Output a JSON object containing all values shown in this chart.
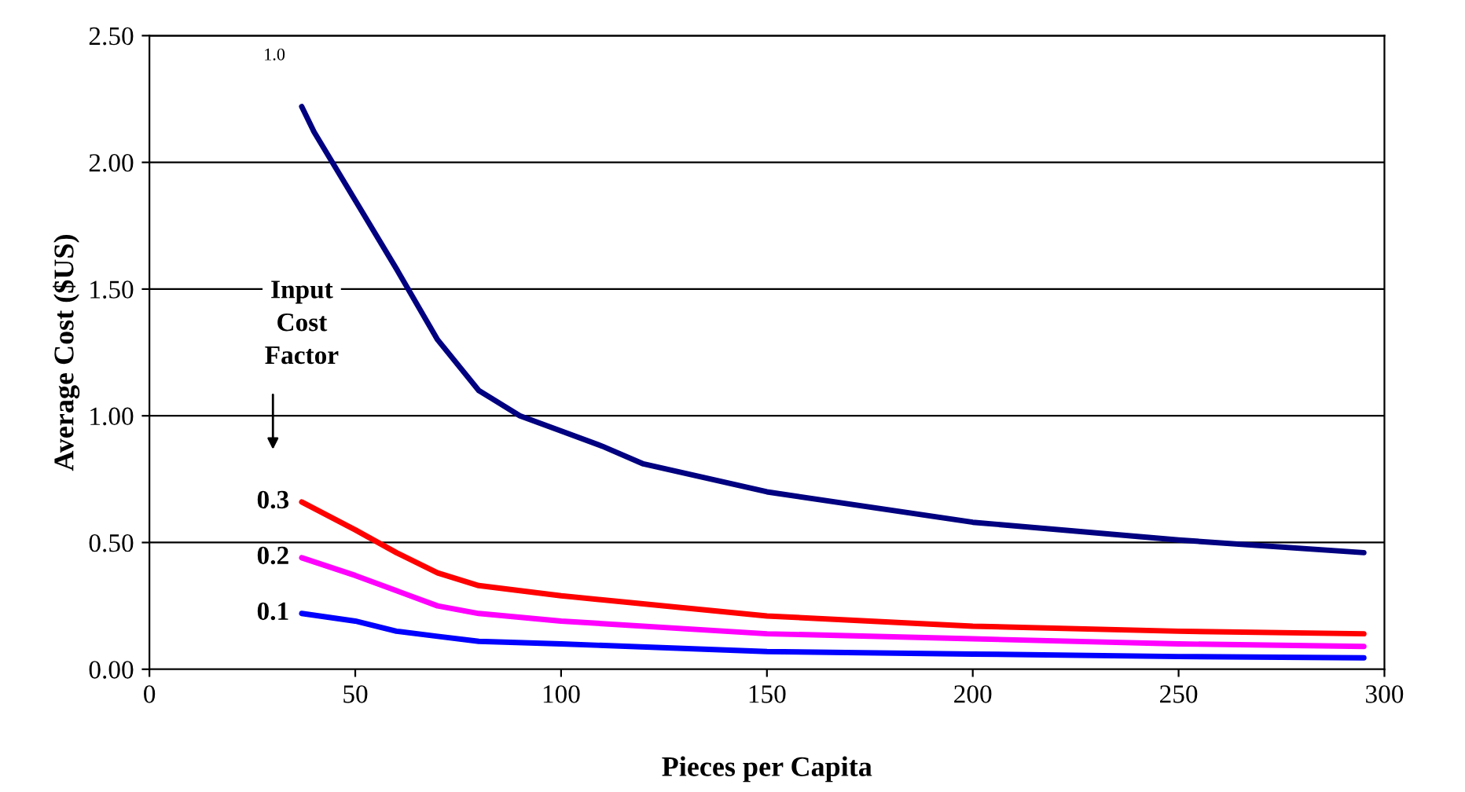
{
  "chart_data": {
    "type": "line",
    "xlabel": "Pieces per Capita",
    "ylabel": "Average Cost ($US)",
    "legend_title": "Input\nCost\nFactor",
    "xlim": [
      0,
      300
    ],
    "xticks": [
      0,
      50,
      100,
      150,
      200,
      250,
      300
    ],
    "ylim": [
      0,
      2.5
    ],
    "yticks": [
      {
        "value": 0,
        "label": "0.00"
      },
      {
        "value": 0.5,
        "label": "0.50"
      },
      {
        "value": 1,
        "label": "1.00"
      },
      {
        "value": 1.5,
        "label": "1.50"
      },
      {
        "value": 2,
        "label": "2.00"
      },
      {
        "value": 2.5,
        "label": "2.50"
      }
    ],
    "grid": "y",
    "legend": false,
    "marker": "none",
    "line_style": "solid",
    "series": [
      {
        "name": "1.0",
        "color": "#000080",
        "x": [
          37,
          40,
          50,
          60,
          70,
          80,
          90,
          100,
          110,
          120,
          150,
          200,
          250,
          295
        ],
        "values": [
          2.22,
          2.12,
          1.85,
          1.58,
          1.3,
          1.1,
          1.0,
          0.94,
          0.88,
          0.81,
          0.7,
          0.58,
          0.51,
          0.46
        ]
      },
      {
        "name": "0.3",
        "color": "#ff0000",
        "x": [
          37,
          50,
          60,
          70,
          80,
          100,
          150,
          200,
          250,
          295
        ],
        "values": [
          0.66,
          0.55,
          0.46,
          0.38,
          0.33,
          0.29,
          0.21,
          0.17,
          0.15,
          0.14
        ]
      },
      {
        "name": "0.2",
        "color": "#ff00ff",
        "x": [
          37,
          50,
          60,
          70,
          80,
          100,
          150,
          200,
          250,
          295
        ],
        "values": [
          0.44,
          0.37,
          0.31,
          0.25,
          0.22,
          0.19,
          0.14,
          0.12,
          0.1,
          0.09
        ]
      },
      {
        "name": "0.1",
        "color": "#0000ff",
        "x": [
          37,
          50,
          60,
          70,
          80,
          100,
          150,
          200,
          250,
          295
        ],
        "values": [
          0.22,
          0.19,
          0.15,
          0.13,
          0.11,
          0.1,
          0.07,
          0.06,
          0.05,
          0.045
        ]
      }
    ]
  }
}
